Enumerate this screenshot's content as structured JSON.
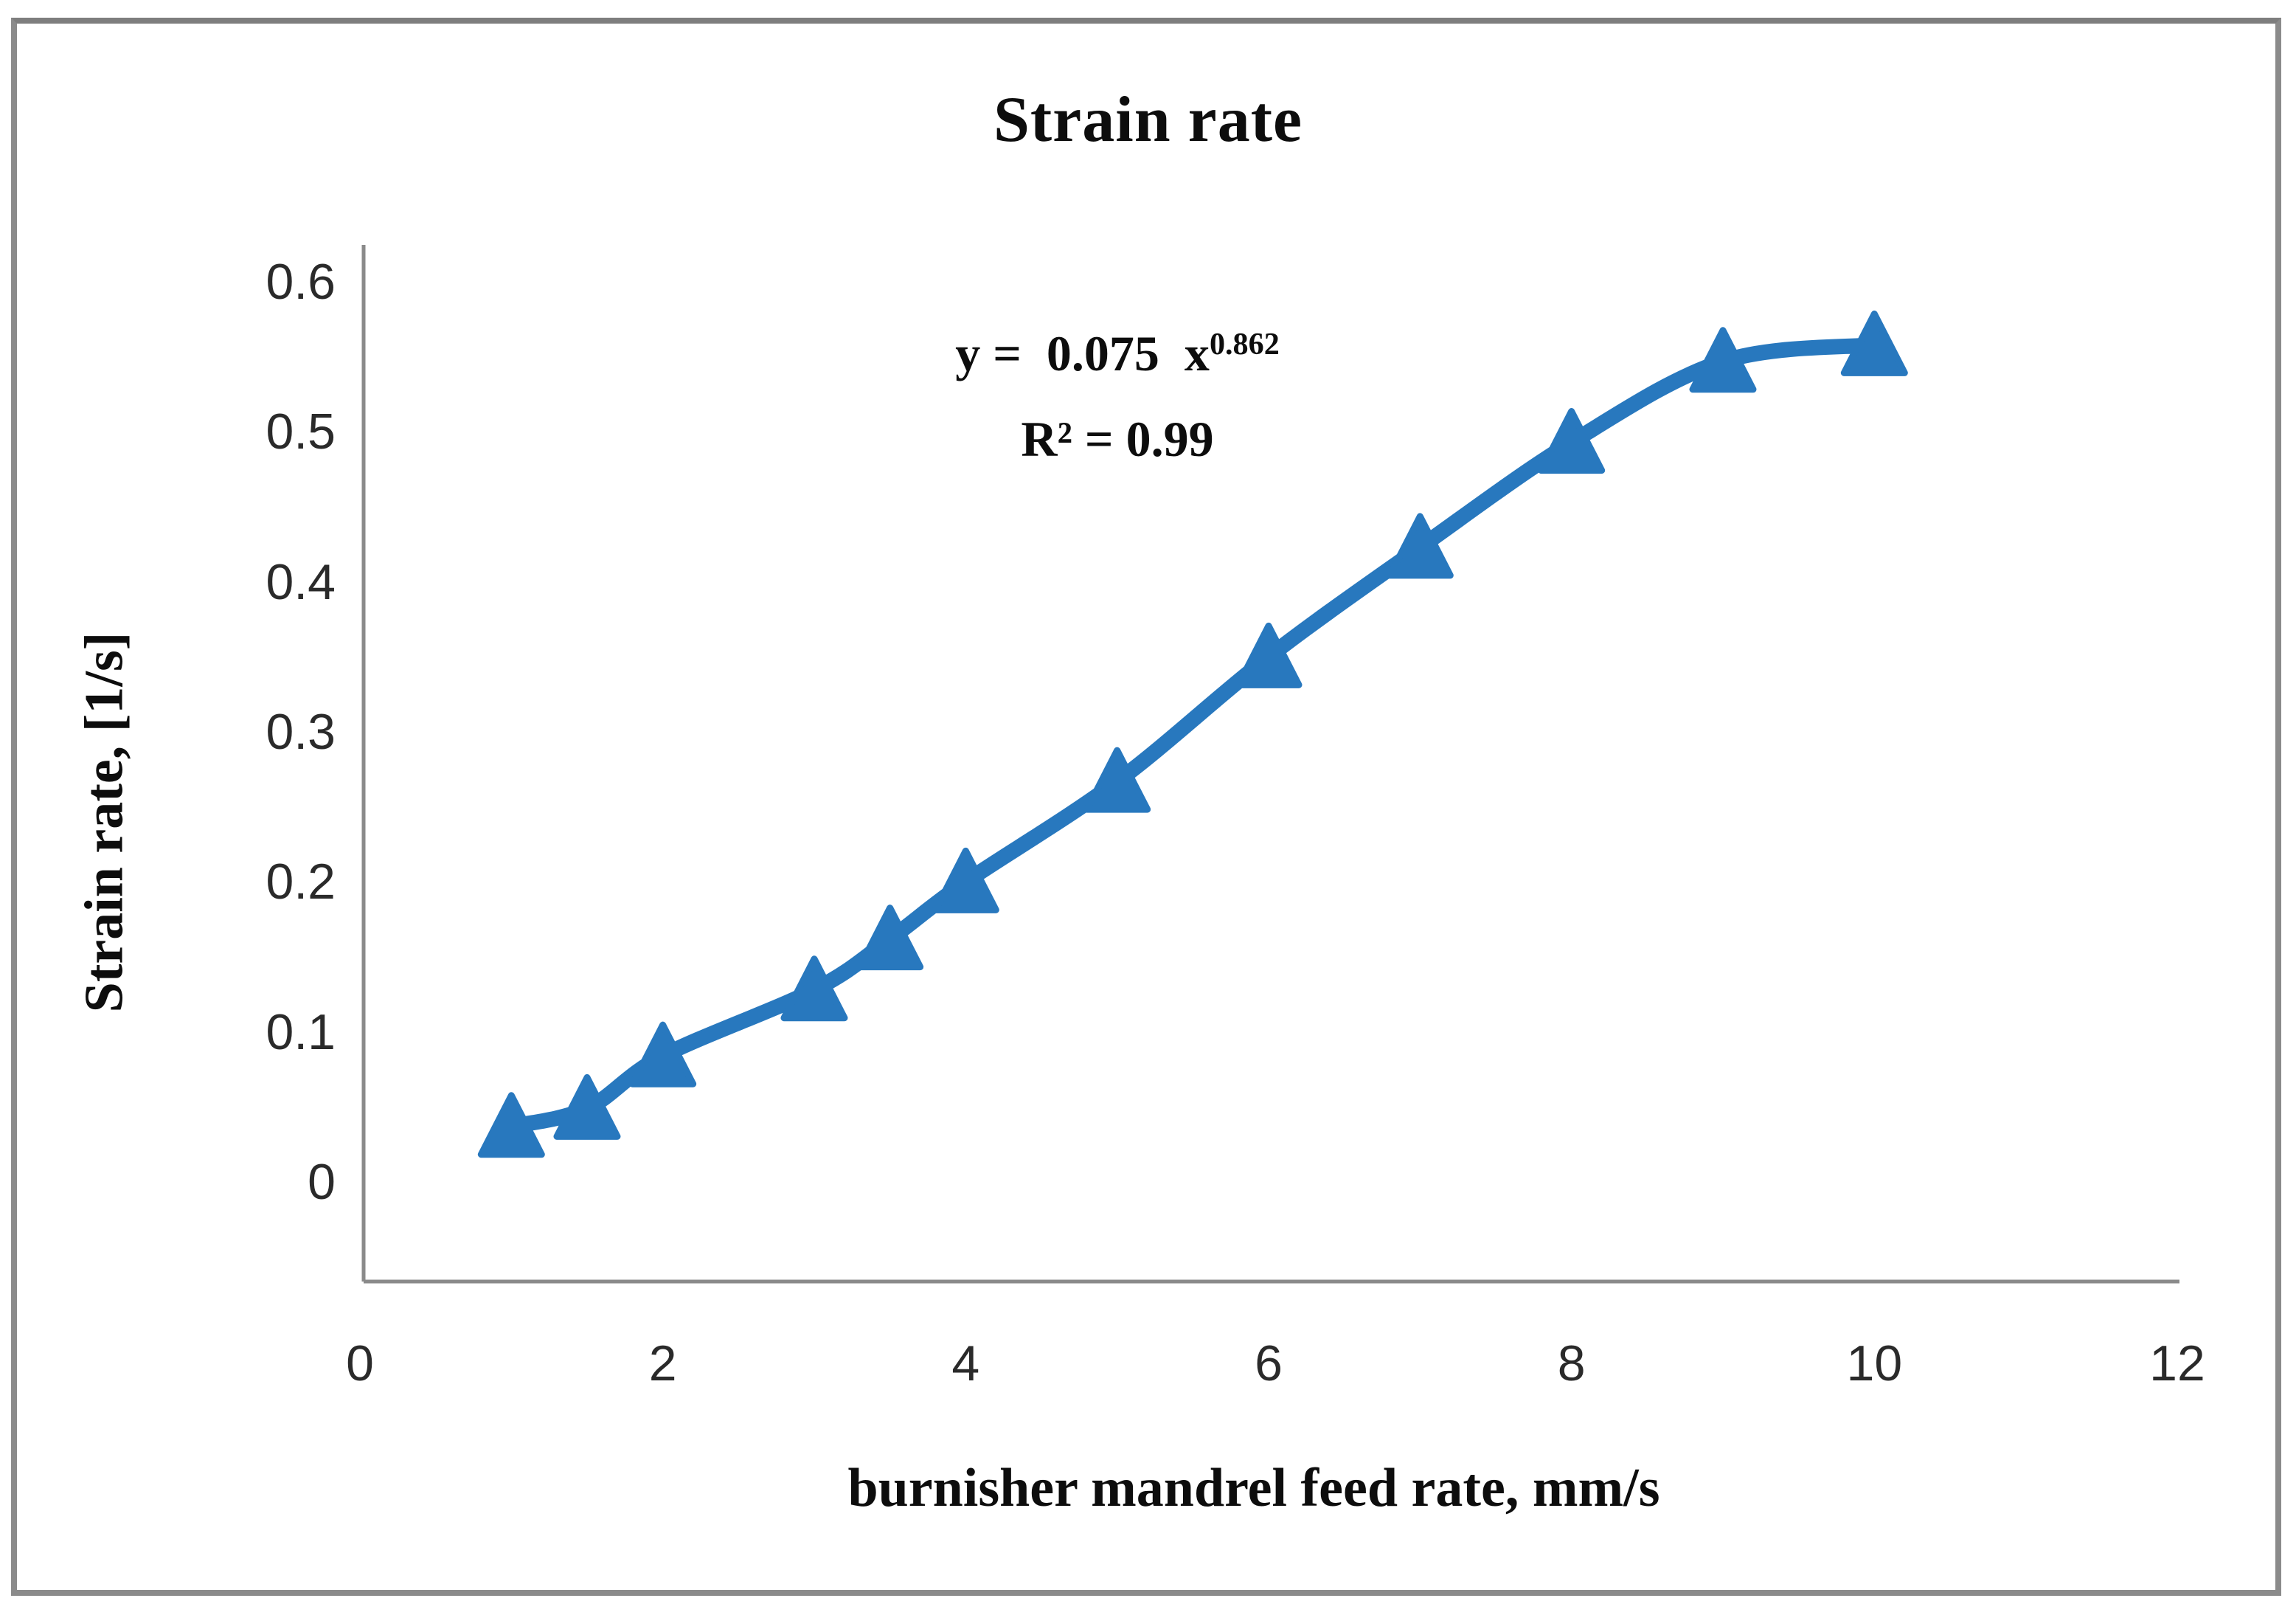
{
  "figure": {
    "background": "#ffffff",
    "frame_border_color": "#8b8b8b"
  },
  "chart_data": {
    "type": "line",
    "title": "Strain rate",
    "xlabel": "burnisher mandrel feed rate, mm/s",
    "ylabel": "Strain rate, [1/s]",
    "x": [
      1,
      1.5,
      2,
      3,
      3.5,
      4,
      5,
      6,
      7,
      8,
      9,
      10
    ],
    "series": [
      {
        "name": "Strain rate",
        "values": [
          0.037,
          0.049,
          0.084,
          0.128,
          0.162,
          0.2,
          0.267,
          0.35,
          0.423,
          0.493,
          0.547,
          0.558
        ],
        "color": "#2878be",
        "marker": "triangle-up",
        "smooth": true
      }
    ],
    "xlim": [
      0,
      12
    ],
    "ylim": [
      -0.066,
      0.625
    ],
    "x_ticks": [
      0,
      2,
      4,
      6,
      8,
      10,
      12
    ],
    "x_tick_labels": [
      "0",
      "2",
      "4",
      "6",
      "8",
      "10",
      "12"
    ],
    "y_ticks": [
      0.6,
      0.5,
      0.4,
      0.3,
      0.2,
      0.1,
      0
    ],
    "y_tick_labels": [
      "0.6",
      "0.5",
      "0.4",
      "0.3",
      "0.2",
      "0.1",
      "0"
    ],
    "grid": false,
    "legend": "none",
    "axis_line_color": "#8a8a8a",
    "annotation": {
      "equation_base": "y =  0.075  x",
      "equation_exponent": "0.862",
      "r_squared": "R² = 0.99"
    }
  }
}
